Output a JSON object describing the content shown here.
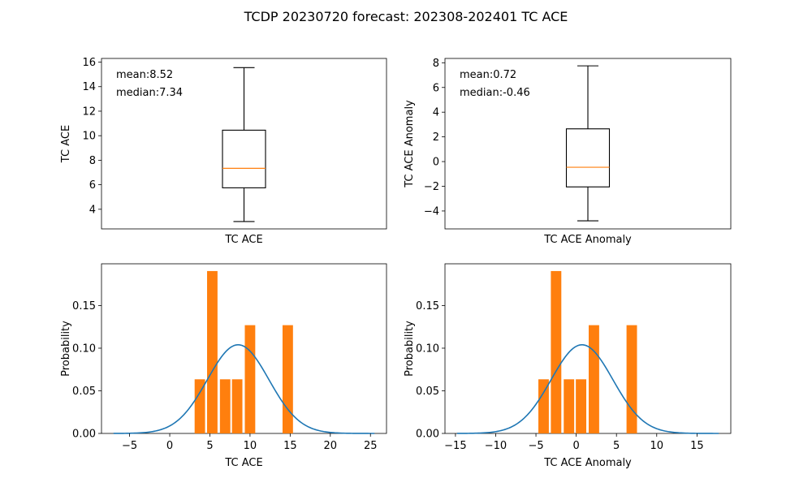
{
  "figure_title": "TCDP 20230720 forecast: 202308-202401 TC ACE",
  "colors": {
    "box": "#000000",
    "median": "#ff7f0e",
    "bars": "#ff7f0e",
    "curve": "#1f77b4"
  },
  "chart_data": [
    {
      "type": "box",
      "xlabel": "TC ACE",
      "ylabel": "TC ACE",
      "ylim": [
        2.4,
        16.3
      ],
      "yticks": [
        4,
        6,
        8,
        10,
        12,
        14,
        16
      ],
      "box": {
        "whisker_low": 3.0,
        "q1": 5.75,
        "median": 7.34,
        "q3": 10.45,
        "whisker_high": 15.55
      },
      "annotations": [
        "mean:8.52",
        "median:7.34"
      ]
    },
    {
      "type": "box",
      "xlabel": "TC ACE Anomaly",
      "ylabel": "TC ACE Anomaly",
      "ylim": [
        -5.45,
        8.35
      ],
      "yticks": [
        -4,
        -2,
        0,
        2,
        4,
        6,
        8
      ],
      "box": {
        "whisker_low": -4.8,
        "q1": -2.05,
        "median": -0.46,
        "q3": 2.65,
        "whisker_high": 7.75
      },
      "annotations": [
        "mean:0.72",
        "median:-0.46"
      ]
    },
    {
      "type": "bar",
      "xlabel": "TC ACE",
      "ylabel": "Probability",
      "xlim": [
        -8.5,
        27
      ],
      "ylim": [
        0,
        0.199
      ],
      "xticks": [
        -5,
        0,
        5,
        10,
        15,
        20,
        25
      ],
      "yticks": [
        0.0,
        0.05,
        0.1,
        0.15
      ],
      "ytick_labels": [
        "0.00",
        "0.05",
        "0.10",
        "0.15"
      ],
      "bar_width": 1.3,
      "bars": [
        {
          "x": 3.75,
          "value": 0.0635
        },
        {
          "x": 5.3,
          "value": 0.1905
        },
        {
          "x": 6.9,
          "value": 0.0635
        },
        {
          "x": 8.4,
          "value": 0.0635
        },
        {
          "x": 10.0,
          "value": 0.127
        },
        {
          "x": 14.7,
          "value": 0.127
        }
      ],
      "curve": {
        "mean": 8.52,
        "peak": 0.104,
        "x_range": [
          -7,
          25.5
        ]
      }
    },
    {
      "type": "bar",
      "xlabel": "TC ACE Anomaly",
      "ylabel": "Probability",
      "xlim": [
        -16.3,
        19.2
      ],
      "ylim": [
        0,
        0.199
      ],
      "xticks": [
        -15,
        -10,
        -5,
        0,
        5,
        10,
        15
      ],
      "yticks": [
        0.0,
        0.05,
        0.1,
        0.15
      ],
      "ytick_labels": [
        "0.00",
        "0.05",
        "0.10",
        "0.15"
      ],
      "bar_width": 1.3,
      "bars": [
        {
          "x": -4.05,
          "value": 0.0635
        },
        {
          "x": -2.5,
          "value": 0.1905
        },
        {
          "x": -0.9,
          "value": 0.0635
        },
        {
          "x": 0.6,
          "value": 0.0635
        },
        {
          "x": 2.2,
          "value": 0.127
        },
        {
          "x": 6.9,
          "value": 0.127
        }
      ],
      "curve": {
        "mean": 0.72,
        "peak": 0.104,
        "x_range": [
          -14.8,
          17.7
        ]
      }
    }
  ]
}
